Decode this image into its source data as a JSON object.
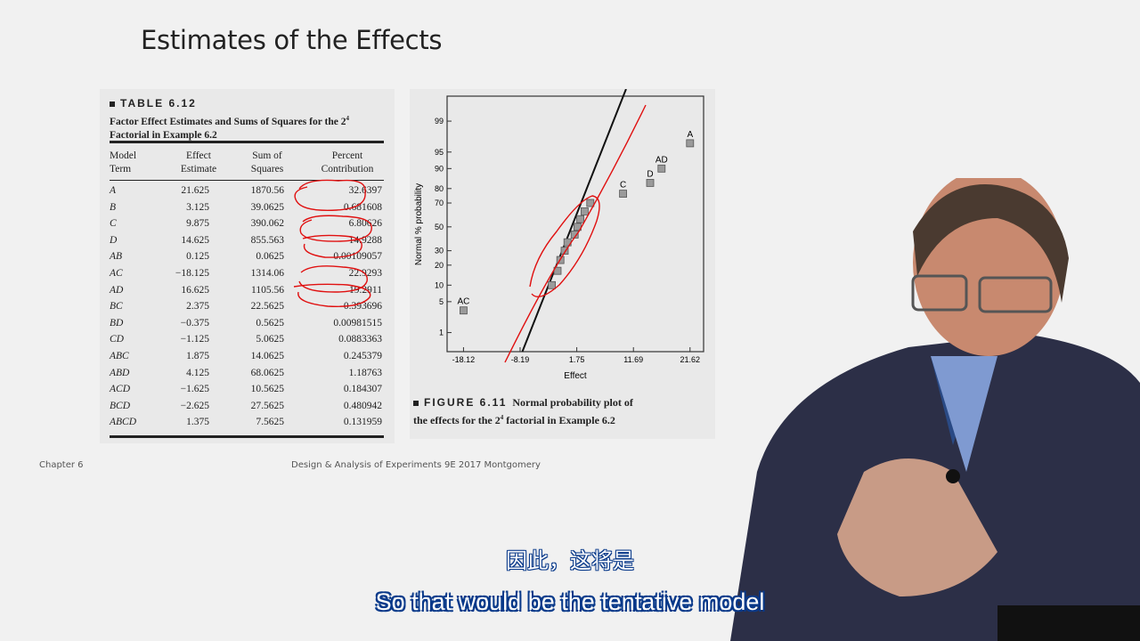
{
  "slide": {
    "title": "Estimates of the Effects",
    "footer_left": "Chapter 6",
    "footer_center": "Design & Analysis of Experiments 9E 2017 Montgomery"
  },
  "table": {
    "label": "TABLE 6.12",
    "caption_line1": "Factor Effect Estimates and Sums of Squares for the 2",
    "caption_sup": "4",
    "caption_line2": "Factorial in Example 6.2",
    "headers": [
      {
        "line1": "Model",
        "line2": "Term"
      },
      {
        "line1": "Effect",
        "line2": "Estimate"
      },
      {
        "line1": "Sum of",
        "line2": "Squares"
      },
      {
        "line1": "Percent",
        "line2": "Contribution"
      }
    ],
    "rows": [
      {
        "term": "A",
        "effect": "21.625",
        "ss": "1870.56",
        "pc": "32.6397"
      },
      {
        "term": "B",
        "effect": "3.125",
        "ss": "39.0625",
        "pc": "0.681608"
      },
      {
        "term": "C",
        "effect": "9.875",
        "ss": "390.062",
        "pc": "6.80626"
      },
      {
        "term": "D",
        "effect": "14.625",
        "ss": "855.563",
        "pc": "14.9288"
      },
      {
        "term": "AB",
        "effect": "0.125",
        "ss": "0.0625",
        "pc": "0.00109057"
      },
      {
        "term": "AC",
        "effect": "−18.125",
        "ss": "1314.06",
        "pc": "22.9293"
      },
      {
        "term": "AD",
        "effect": "16.625",
        "ss": "1105.56",
        "pc": "19.2911"
      },
      {
        "term": "BC",
        "effect": "2.375",
        "ss": "22.5625",
        "pc": "0.393696"
      },
      {
        "term": "BD",
        "effect": "−0.375",
        "ss": "0.5625",
        "pc": "0.00981515"
      },
      {
        "term": "CD",
        "effect": "−1.125",
        "ss": "5.0625",
        "pc": "0.0883363"
      },
      {
        "term": "ABC",
        "effect": "1.875",
        "ss": "14.0625",
        "pc": "0.245379"
      },
      {
        "term": "ABD",
        "effect": "4.125",
        "ss": "68.0625",
        "pc": "1.18763"
      },
      {
        "term": "ACD",
        "effect": "−1.625",
        "ss": "10.5625",
        "pc": "0.184307"
      },
      {
        "term": "BCD",
        "effect": "−2.625",
        "ss": "27.5625",
        "pc": "0.480942"
      },
      {
        "term": "ABCD",
        "effect": "1.375",
        "ss": "7.5625",
        "pc": "0.131959"
      }
    ]
  },
  "figure": {
    "label": "FIGURE 6.11",
    "caption_a": "Normal probability plot of",
    "caption_b": "the effects for the 2",
    "caption_sup": "4",
    "caption_c": " factorial in Example 6.2"
  },
  "chart_data": {
    "type": "scatter",
    "title": "",
    "xlabel": "Effect",
    "ylabel": "Normal % probability",
    "xlim": [
      -21,
      24
    ],
    "ylim": [
      0.3,
      99.8
    ],
    "y_scale": "normal-probability",
    "x_ticks": [
      "-18.12",
      "-8.19",
      "1.75",
      "11.69",
      "21.62"
    ],
    "y_ticks": [
      "99",
      "95",
      "90",
      "80",
      "70",
      "50",
      "30",
      "20",
      "10",
      "5",
      "1"
    ],
    "labeled_points": [
      {
        "label": "AC",
        "x": -18.12,
        "y": 3.3
      },
      {
        "label": "C",
        "x": 9.875,
        "y": 76.7
      },
      {
        "label": "D",
        "x": 14.625,
        "y": 83.3
      },
      {
        "label": "AD",
        "x": 16.625,
        "y": 90
      },
      {
        "label": "A",
        "x": 21.625,
        "y": 96.7
      }
    ],
    "points": [
      {
        "x": -2.625,
        "y": 10
      },
      {
        "x": -1.625,
        "y": 16.7
      },
      {
        "x": -1.125,
        "y": 23.3
      },
      {
        "x": -0.375,
        "y": 30
      },
      {
        "x": 0.125,
        "y": 36.7
      },
      {
        "x": 1.375,
        "y": 43.3
      },
      {
        "x": 1.875,
        "y": 50
      },
      {
        "x": 2.375,
        "y": 56.7
      },
      {
        "x": 3.125,
        "y": 63.3
      },
      {
        "x": 4.125,
        "y": 70
      }
    ],
    "fit_line": true,
    "grid": false
  },
  "subtitles": {
    "chinese": "因此，这将是",
    "english": "So that would be the tentative model"
  }
}
